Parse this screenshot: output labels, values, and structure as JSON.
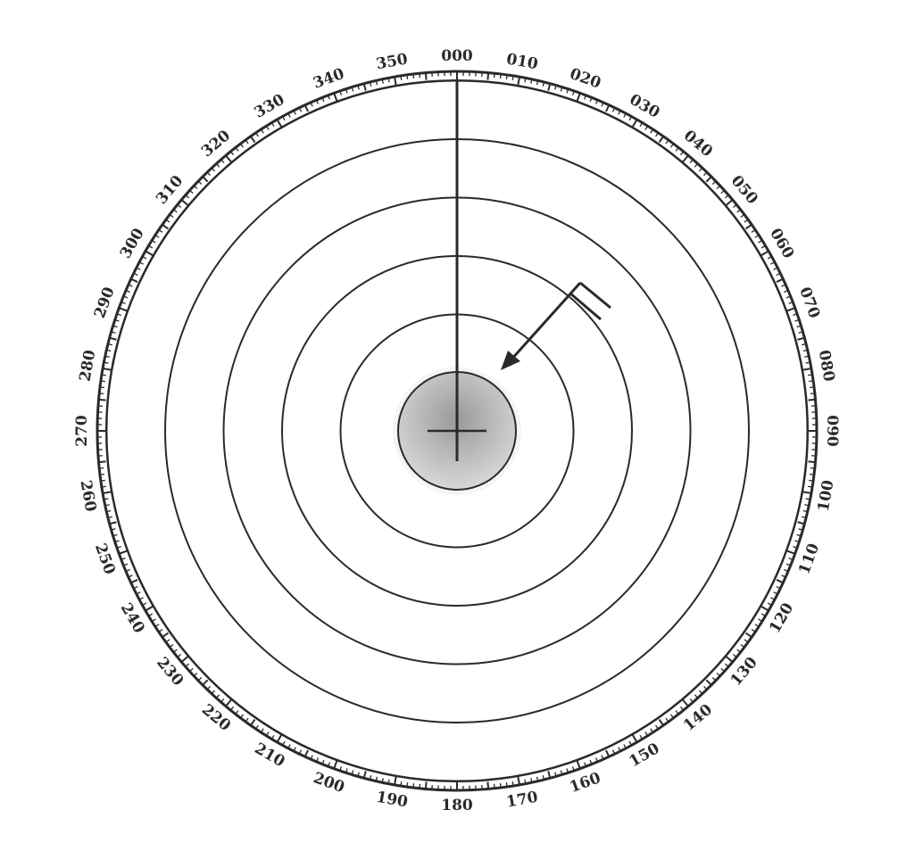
{
  "diagram": {
    "type": "radar-bearing-display",
    "bearing_labels": [
      "000",
      "010",
      "020",
      "030",
      "040",
      "050",
      "060",
      "070",
      "080",
      "090",
      "100",
      "110",
      "120",
      "130",
      "140",
      "150",
      "160",
      "170",
      "180",
      "190",
      "200",
      "210",
      "220",
      "230",
      "240",
      "250",
      "260",
      "270",
      "280",
      "290",
      "300",
      "310",
      "320",
      "330",
      "340",
      "350"
    ],
    "range_rings": 5,
    "heading_line_bearing_deg": 0,
    "target_arrow_bearing_deg": 40,
    "colors": {
      "ink": "#2a2a2a",
      "center_fill": "#b8b8b8",
      "background": "#ffffff"
    }
  }
}
